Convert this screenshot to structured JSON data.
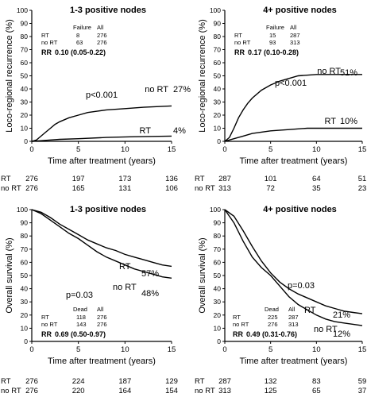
{
  "chart_data": [
    {
      "type": "line",
      "panel": "top-left",
      "title": "1-3 positive nodes",
      "ylabel": "Loco-regional recurrence (%)",
      "xlabel": "Time  after treatment (years)",
      "xlim": [
        0,
        15
      ],
      "ylim": [
        0,
        100
      ],
      "xticks": [
        0,
        5,
        10,
        15
      ],
      "yticks": [
        0,
        10,
        20,
        30,
        40,
        50,
        60,
        70,
        80,
        90,
        100
      ],
      "series": [
        {
          "name": "no RT",
          "end_label": "27%",
          "points": [
            [
              0,
              0
            ],
            [
              0.5,
              1
            ],
            [
              1,
              4
            ],
            [
              1.5,
              7
            ],
            [
              2,
              10
            ],
            [
              2.5,
              13
            ],
            [
              3,
              15
            ],
            [
              4,
              18
            ],
            [
              5,
              20
            ],
            [
              6,
              22
            ],
            [
              7,
              23
            ],
            [
              8,
              24
            ],
            [
              10,
              25
            ],
            [
              12,
              26
            ],
            [
              15,
              27
            ]
          ]
        },
        {
          "name": "RT",
          "end_label": "4%",
          "points": [
            [
              0,
              0
            ],
            [
              1,
              0.5
            ],
            [
              2,
              1
            ],
            [
              3,
              1.5
            ],
            [
              5,
              2
            ],
            [
              8,
              3
            ],
            [
              11,
              3.5
            ],
            [
              15,
              4
            ]
          ]
        }
      ],
      "pvalue": "p<0.001",
      "stats": {
        "col_failure": "Failure",
        "col_all": "All",
        "rows": [
          {
            "label": "RT",
            "failure": "8",
            "all": "276"
          },
          {
            "label": "no RT",
            "failure": "63",
            "all": "276"
          }
        ],
        "rr_label": "RR",
        "rr": "0.10",
        "ci": "(0.05-0.22)"
      },
      "at_risk": [
        {
          "label": "RT",
          "values": [
            "276",
            "197",
            "173",
            "136"
          ]
        },
        {
          "label": "no RT",
          "values": [
            "276",
            "165",
            "131",
            "106"
          ]
        }
      ]
    },
    {
      "type": "line",
      "panel": "top-right",
      "title": "4+ positive nodes",
      "ylabel": "Loco-regional recurrence (%)",
      "xlabel": "Time  after treatment (years)",
      "xlim": [
        0,
        15
      ],
      "ylim": [
        0,
        100
      ],
      "xticks": [
        0,
        5,
        10,
        15
      ],
      "yticks": [
        0,
        10,
        20,
        30,
        40,
        50,
        60,
        70,
        80,
        90,
        100
      ],
      "series": [
        {
          "name": "no RT",
          "end_label": "51%",
          "points": [
            [
              0,
              0
            ],
            [
              0.5,
              3
            ],
            [
              1,
              10
            ],
            [
              1.5,
              18
            ],
            [
              2,
              24
            ],
            [
              2.5,
              29
            ],
            [
              3,
              33
            ],
            [
              4,
              39
            ],
            [
              5,
              43
            ],
            [
              6,
              46
            ],
            [
              7,
              48
            ],
            [
              8,
              50
            ],
            [
              10,
              51
            ],
            [
              15,
              51
            ]
          ]
        },
        {
          "name": "RT",
          "end_label": "10%",
          "points": [
            [
              0,
              0
            ],
            [
              0.5,
              1
            ],
            [
              1,
              2
            ],
            [
              2,
              4
            ],
            [
              3,
              6
            ],
            [
              4,
              7
            ],
            [
              5,
              8
            ],
            [
              7,
              9
            ],
            [
              9,
              10
            ],
            [
              15,
              10
            ]
          ]
        }
      ],
      "pvalue": "p<0.001",
      "stats": {
        "col_failure": "Failure",
        "col_all": "All",
        "rows": [
          {
            "label": "RT",
            "failure": "15",
            "all": "287"
          },
          {
            "label": "no RT",
            "failure": "93",
            "all": "313"
          }
        ],
        "rr_label": "RR",
        "rr": "0.17",
        "ci": "(0.10-0.28)"
      },
      "at_risk": [
        {
          "label": "RT",
          "values": [
            "287",
            "101",
            "64",
            "51"
          ]
        },
        {
          "label": "no RT",
          "values": [
            "313",
            "72",
            "35",
            "23"
          ]
        }
      ]
    },
    {
      "type": "line",
      "panel": "bottom-left",
      "title": "1-3 positive nodes",
      "ylabel": "Overall survival (%)",
      "xlabel": "Time after treatment (years)",
      "xlim": [
        0,
        15
      ],
      "ylim": [
        0,
        100
      ],
      "xticks": [
        0,
        5,
        10,
        15
      ],
      "yticks": [
        0,
        10,
        20,
        30,
        40,
        50,
        60,
        70,
        80,
        90,
        100
      ],
      "series": [
        {
          "name": "RT",
          "end_label": "57%",
          "points": [
            [
              0,
              100
            ],
            [
              1,
              98
            ],
            [
              2,
              94
            ],
            [
              3,
              89
            ],
            [
              4,
              85
            ],
            [
              5,
              81
            ],
            [
              6,
              77
            ],
            [
              7,
              74
            ],
            [
              8,
              71
            ],
            [
              9,
              69
            ],
            [
              10,
              66
            ],
            [
              11,
              64
            ],
            [
              12,
              62
            ],
            [
              13,
              60
            ],
            [
              14,
              58
            ],
            [
              15,
              57
            ]
          ]
        },
        {
          "name": "no RT",
          "end_label": "48%",
          "points": [
            [
              0,
              100
            ],
            [
              1,
              97
            ],
            [
              2,
              92
            ],
            [
              3,
              87
            ],
            [
              4,
              82
            ],
            [
              5,
              78
            ],
            [
              6,
              73
            ],
            [
              7,
              68
            ],
            [
              8,
              64
            ],
            [
              9,
              61
            ],
            [
              10,
              58
            ],
            [
              11,
              55
            ],
            [
              12,
              53
            ],
            [
              13,
              51
            ],
            [
              14,
              49
            ],
            [
              15,
              48
            ]
          ]
        }
      ],
      "pvalue": "p=0.03",
      "stats": {
        "col_failure": "Dead",
        "col_all": "All",
        "rows": [
          {
            "label": "RT",
            "failure": "118",
            "all": "276"
          },
          {
            "label": "no RT",
            "failure": "143",
            "all": "276"
          }
        ],
        "rr_label": "RR",
        "rr": "0.69",
        "ci": "(0.50-0.97)"
      },
      "at_risk": [
        {
          "label": "RT",
          "values": [
            "276",
            "224",
            "187",
            "129"
          ]
        },
        {
          "label": "no RT",
          "values": [
            "276",
            "220",
            "164",
            "154"
          ]
        }
      ]
    },
    {
      "type": "line",
      "panel": "bottom-right",
      "title": "4+ positive nodes",
      "ylabel": "Overall survival (%)",
      "xlabel": "Time after treatment (years)",
      "xlim": [
        0,
        15
      ],
      "ylim": [
        0,
        100
      ],
      "xticks": [
        0,
        5,
        10,
        15
      ],
      "yticks": [
        0,
        10,
        20,
        30,
        40,
        50,
        60,
        70,
        80,
        90,
        100
      ],
      "series": [
        {
          "name": "RT",
          "end_label": "21%",
          "points": [
            [
              0,
              100
            ],
            [
              1,
              95
            ],
            [
              2,
              84
            ],
            [
              3,
              72
            ],
            [
              4,
              61
            ],
            [
              5,
              52
            ],
            [
              6,
              45
            ],
            [
              7,
              40
            ],
            [
              8,
              36
            ],
            [
              9,
              33
            ],
            [
              10,
              30
            ],
            [
              11,
              27
            ],
            [
              12,
              25
            ],
            [
              13,
              23
            ],
            [
              14,
              22
            ],
            [
              15,
              21
            ]
          ]
        },
        {
          "name": "no RT",
          "end_label": "12%",
          "points": [
            [
              0,
              100
            ],
            [
              1,
              90
            ],
            [
              2,
              76
            ],
            [
              3,
              64
            ],
            [
              4,
              56
            ],
            [
              5,
              50
            ],
            [
              6,
              42
            ],
            [
              7,
              34
            ],
            [
              8,
              28
            ],
            [
              9,
              24
            ],
            [
              10,
              20
            ],
            [
              11,
              17
            ],
            [
              12,
              15
            ],
            [
              13,
              14
            ],
            [
              14,
              13
            ],
            [
              15,
              12
            ]
          ]
        }
      ],
      "pvalue": "p=0.03",
      "stats": {
        "col_failure": "Dead",
        "col_all": "All",
        "rows": [
          {
            "label": "RT",
            "failure": "225",
            "all": "287"
          },
          {
            "label": "no RT",
            "failure": "276",
            "all": "313"
          }
        ],
        "rr_label": "RR",
        "rr": "0.49",
        "ci": "(0.31-0.76)"
      },
      "at_risk": [
        {
          "label": "RT",
          "values": [
            "287",
            "132",
            "83",
            "59"
          ]
        },
        {
          "label": "no RT",
          "values": [
            "313",
            "125",
            "65",
            "37"
          ]
        }
      ]
    }
  ]
}
